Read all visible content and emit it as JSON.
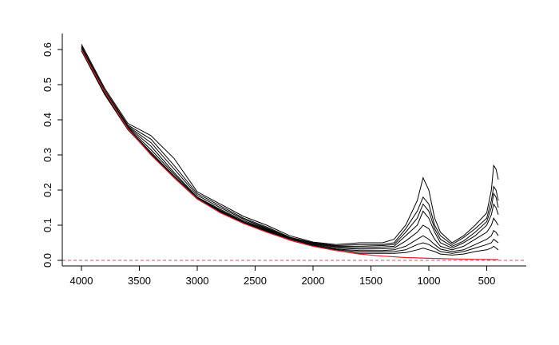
{
  "chart_data": {
    "type": "line",
    "title": "",
    "xlabel": "",
    "ylabel": "",
    "xlim": [
      4000,
      400
    ],
    "ylim": [
      0,
      0.6
    ],
    "x_ticks": [
      "4000",
      "3500",
      "3000",
      "2500",
      "2000",
      "1500",
      "1000",
      "500"
    ],
    "y_ticks": [
      "0.0",
      "0.1",
      "0.2",
      "0.3",
      "0.4",
      "0.5",
      "0.6"
    ],
    "grid": false,
    "legend": "none",
    "colors": {
      "spectra": "#000000",
      "baseline": "#e8202a",
      "reference": "#d05070"
    },
    "reference_line": {
      "y": 0.0,
      "style": "dashed"
    },
    "baseline_series": {
      "x": [
        4000,
        3800,
        3600,
        3400,
        3200,
        3000,
        2800,
        2600,
        2400,
        2200,
        2000,
        1800,
        1600,
        1400,
        1200,
        1000,
        800,
        600,
        400
      ],
      "values": [
        0.6,
        0.48,
        0.375,
        0.3,
        0.235,
        0.175,
        0.135,
        0.105,
        0.08,
        0.058,
        0.04,
        0.028,
        0.018,
        0.012,
        0.008,
        0.006,
        0.004,
        0.003,
        0.002
      ]
    },
    "series": [
      {
        "x": [
          4000,
          3800,
          3600,
          3400,
          3200,
          3000,
          2800,
          2600,
          2400,
          2200,
          2000,
          1800,
          1600,
          1400,
          1300,
          1200,
          1100,
          1050,
          1000,
          950,
          900,
          800,
          700,
          600,
          500,
          460,
          440,
          420,
          400
        ],
        "values": [
          0.615,
          0.49,
          0.39,
          0.355,
          0.29,
          0.195,
          0.16,
          0.125,
          0.1,
          0.07,
          0.052,
          0.045,
          0.05,
          0.05,
          0.06,
          0.1,
          0.17,
          0.235,
          0.2,
          0.12,
          0.08,
          0.05,
          0.07,
          0.1,
          0.135,
          0.2,
          0.27,
          0.26,
          0.23
        ]
      },
      {
        "x": [
          4000,
          3800,
          3600,
          3400,
          3200,
          3000,
          2800,
          2600,
          2400,
          2200,
          2000,
          1800,
          1600,
          1400,
          1300,
          1200,
          1100,
          1050,
          1000,
          950,
          900,
          800,
          700,
          600,
          500,
          460,
          440,
          420,
          400
        ],
        "values": [
          0.61,
          0.485,
          0.385,
          0.345,
          0.27,
          0.19,
          0.155,
          0.12,
          0.095,
          0.066,
          0.05,
          0.042,
          0.045,
          0.045,
          0.05,
          0.09,
          0.14,
          0.18,
          0.16,
          0.1,
          0.07,
          0.045,
          0.065,
          0.09,
          0.12,
          0.17,
          0.21,
          0.2,
          0.17
        ]
      },
      {
        "x": [
          4000,
          3800,
          3600,
          3400,
          3200,
          3000,
          2800,
          2600,
          2400,
          2200,
          2000,
          1800,
          1600,
          1400,
          1300,
          1200,
          1100,
          1050,
          1000,
          950,
          900,
          800,
          700,
          600,
          500,
          460,
          440,
          420,
          400
        ],
        "values": [
          0.608,
          0.482,
          0.382,
          0.335,
          0.26,
          0.185,
          0.15,
          0.117,
          0.092,
          0.064,
          0.048,
          0.04,
          0.04,
          0.042,
          0.045,
          0.08,
          0.12,
          0.16,
          0.14,
          0.09,
          0.06,
          0.04,
          0.055,
          0.08,
          0.11,
          0.15,
          0.19,
          0.18,
          0.15
        ]
      },
      {
        "x": [
          4000,
          3800,
          3600,
          3400,
          3200,
          3000,
          2800,
          2600,
          2400,
          2200,
          2000,
          1800,
          1600,
          1400,
          1300,
          1200,
          1100,
          1050,
          1000,
          950,
          900,
          800,
          700,
          600,
          500,
          460,
          440,
          420,
          400
        ],
        "values": [
          0.605,
          0.48,
          0.38,
          0.325,
          0.25,
          0.18,
          0.145,
          0.113,
          0.09,
          0.062,
          0.046,
          0.038,
          0.036,
          0.038,
          0.04,
          0.07,
          0.1,
          0.14,
          0.12,
          0.08,
          0.05,
          0.035,
          0.05,
          0.07,
          0.1,
          0.13,
          0.16,
          0.15,
          0.13
        ]
      },
      {
        "x": [
          4000,
          3800,
          3600,
          3400,
          3200,
          3000,
          2800,
          2600,
          2400,
          2200,
          2000,
          1800,
          1600,
          1400,
          1300,
          1200,
          1100,
          1050,
          1000,
          950,
          900,
          800,
          700,
          600,
          500,
          460,
          440,
          420,
          400
        ],
        "values": [
          0.603,
          0.478,
          0.378,
          0.315,
          0.245,
          0.178,
          0.142,
          0.11,
          0.088,
          0.06,
          0.044,
          0.035,
          0.032,
          0.033,
          0.035,
          0.055,
          0.08,
          0.1,
          0.09,
          0.06,
          0.04,
          0.03,
          0.04,
          0.06,
          0.08,
          0.1,
          0.12,
          0.11,
          0.1
        ]
      },
      {
        "x": [
          4000,
          3800,
          3600,
          3400,
          3200,
          3000,
          2800,
          2600,
          2400,
          2200,
          2000,
          1800,
          1600,
          1400,
          1300,
          1200,
          1100,
          1050,
          1000,
          950,
          900,
          800,
          700,
          600,
          500,
          460,
          440,
          420,
          400
        ],
        "values": [
          0.6,
          0.476,
          0.376,
          0.308,
          0.24,
          0.176,
          0.14,
          0.108,
          0.086,
          0.059,
          0.042,
          0.032,
          0.028,
          0.028,
          0.03,
          0.04,
          0.06,
          0.07,
          0.06,
          0.045,
          0.032,
          0.025,
          0.03,
          0.045,
          0.06,
          0.07,
          0.085,
          0.08,
          0.07
        ]
      },
      {
        "x": [
          4000,
          3800,
          3600,
          3400,
          3200,
          3000,
          2800,
          2600,
          2400,
          2200,
          2000,
          1800,
          1600,
          1400,
          1300,
          1200,
          1100,
          1050,
          1000,
          950,
          900,
          800,
          700,
          600,
          500,
          460,
          440,
          420,
          400
        ],
        "values": [
          0.598,
          0.474,
          0.374,
          0.304,
          0.237,
          0.175,
          0.138,
          0.107,
          0.084,
          0.058,
          0.041,
          0.03,
          0.024,
          0.024,
          0.025,
          0.03,
          0.045,
          0.05,
          0.045,
          0.035,
          0.025,
          0.02,
          0.025,
          0.035,
          0.045,
          0.05,
          0.06,
          0.055,
          0.05
        ]
      },
      {
        "x": [
          4000,
          3800,
          3600,
          3400,
          3200,
          3000,
          2800,
          2600,
          2400,
          2200,
          2000,
          1800,
          1600,
          1400,
          1300,
          1200,
          1100,
          1050,
          1000,
          950,
          900,
          800,
          700,
          600,
          500,
          460,
          440,
          420,
          400
        ],
        "values": [
          0.596,
          0.472,
          0.372,
          0.302,
          0.235,
          0.174,
          0.136,
          0.106,
          0.082,
          0.057,
          0.04,
          0.028,
          0.02,
          0.02,
          0.02,
          0.022,
          0.03,
          0.035,
          0.03,
          0.025,
          0.018,
          0.015,
          0.018,
          0.025,
          0.03,
          0.035,
          0.04,
          0.035,
          0.03
        ]
      }
    ]
  }
}
